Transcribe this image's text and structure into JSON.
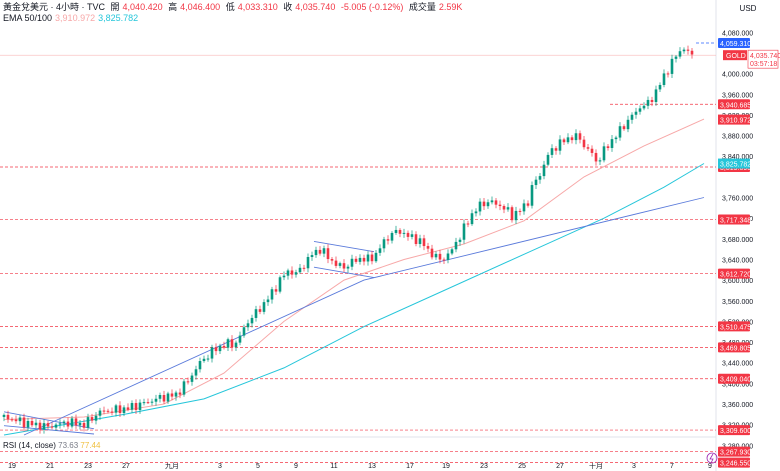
{
  "header": {
    "title": "黃金兌美元 · 4小時 · TVC",
    "open_label": "開",
    "open": "4,040.420",
    "high_label": "高",
    "high": "4,046.400",
    "low_label": "低",
    "low": "4,033.310",
    "close_label": "收",
    "close": "4,035.740",
    "change": "-5.005 (-0.12%)",
    "volume_label": "成交量",
    "volume": "2.59K",
    "ema_label": "EMA 50/100",
    "ema50": "3,910.972",
    "ema100": "3,825.782"
  },
  "rsi": {
    "label": "RSI (14, close)",
    "v1": "73.63",
    "v2": "77.44"
  },
  "currency": "USD",
  "colors": {
    "up": "#089981",
    "down": "#f23645",
    "ema50": "#f7a8a8",
    "ema100": "#26c6da",
    "trend": "#5b7bdb",
    "level": "#f23645"
  },
  "chart_data": {
    "type": "candlestick",
    "symbol": "GOLD",
    "ylim": [
      3240,
      4100
    ],
    "y_ticks": [
      4080,
      4000,
      3960,
      3920,
      3880,
      3840,
      3760,
      3720,
      3680,
      3640,
      3600,
      3560,
      3520,
      3480,
      3440,
      3400,
      3360,
      3320,
      3280
    ],
    "y_tick_labels": [
      "4,080.000",
      "4,000.000",
      "3,960.000",
      "3,920.000",
      "3,880.000",
      "3,840.000",
      "3,760.000",
      "3,720.000",
      "3,680.000",
      "3,640.000",
      "3,600.000",
      "3,560.000",
      "3,520.000",
      "3,480.000",
      "3,440.000",
      "3,400.000",
      "3,360.000",
      "3,320.000",
      "3,280.000"
    ],
    "x_labels": [
      "19",
      "21",
      "23",
      "27",
      "九月",
      "3",
      "5",
      "9",
      "11",
      "13",
      "17",
      "19",
      "23",
      "25",
      "27",
      "十月",
      "3",
      "7",
      "9"
    ],
    "levels": [
      4059.31,
      3940.685,
      3819.095,
      3717.348,
      3612.72,
      3510.475,
      3469.805,
      3409.04,
      3309.6,
      3267.93,
      3246.55
    ],
    "level_labels": [
      "4,059.310",
      "3,940.685",
      "3,819.095",
      "3,717.348",
      "3,612.720",
      "3,510.475",
      "3,469.805",
      "3,409.040",
      "3,309.600",
      "3,267.930",
      "3,246.550"
    ],
    "last_price": {
      "label": "GOLD",
      "value": "4,035.740",
      "countdown": "03:57:18"
    },
    "ema50_tag": "3,910.972",
    "ema100_tag": "3,825.782",
    "close_path": [
      [
        0,
        3335
      ],
      [
        12,
        3322
      ],
      [
        22,
        3316
      ],
      [
        32,
        3325
      ],
      [
        40,
        3320
      ],
      [
        48,
        3345
      ],
      [
        55,
        3348
      ],
      [
        62,
        3352
      ],
      [
        70,
        3362
      ],
      [
        78,
        3372
      ],
      [
        86,
        3378
      ],
      [
        92,
        3405
      ],
      [
        98,
        3440
      ],
      [
        104,
        3462
      ],
      [
        110,
        3475
      ],
      [
        116,
        3478
      ],
      [
        122,
        3520
      ],
      [
        128,
        3545
      ],
      [
        134,
        3575
      ],
      [
        138,
        3600
      ],
      [
        142,
        3618
      ],
      [
        146,
        3612
      ],
      [
        150,
        3630
      ],
      [
        154,
        3650
      ],
      [
        158,
        3660
      ],
      [
        162,
        3645
      ],
      [
        166,
        3630
      ],
      [
        170,
        3625
      ],
      [
        174,
        3635
      ],
      [
        178,
        3642
      ],
      [
        182,
        3640
      ],
      [
        186,
        3650
      ],
      [
        190,
        3675
      ],
      [
        194,
        3690
      ],
      [
        198,
        3695
      ],
      [
        202,
        3685
      ],
      [
        206,
        3680
      ],
      [
        210,
        3668
      ],
      [
        214,
        3650
      ],
      [
        218,
        3640
      ],
      [
        222,
        3648
      ],
      [
        226,
        3672
      ],
      [
        230,
        3700
      ],
      [
        234,
        3728
      ],
      [
        238,
        3745
      ],
      [
        242,
        3752
      ],
      [
        246,
        3748
      ],
      [
        250,
        3740
      ],
      [
        254,
        3725
      ],
      [
        258,
        3735
      ],
      [
        262,
        3752
      ],
      [
        264,
        3780
      ],
      [
        268,
        3805
      ],
      [
        272,
        3842
      ],
      [
        276,
        3860
      ],
      [
        280,
        3870
      ],
      [
        284,
        3878
      ],
      [
        288,
        3875
      ],
      [
        290,
        3860
      ],
      [
        294,
        3845
      ],
      [
        296,
        3830
      ],
      [
        298,
        3838
      ],
      [
        302,
        3862
      ],
      [
        306,
        3880
      ],
      [
        310,
        3900
      ],
      [
        314,
        3918
      ],
      [
        318,
        3935
      ],
      [
        322,
        3942
      ],
      [
        326,
        3965
      ],
      [
        330,
        3995
      ],
      [
        334,
        4022
      ],
      [
        338,
        4045
      ],
      [
        340,
        4048
      ],
      [
        344,
        4035
      ]
    ],
    "ema50": [
      [
        0,
        3330
      ],
      [
        40,
        3335
      ],
      [
        80,
        3360
      ],
      [
        110,
        3420
      ],
      [
        140,
        3520
      ],
      [
        170,
        3600
      ],
      [
        200,
        3640
      ],
      [
        230,
        3670
      ],
      [
        260,
        3715
      ],
      [
        290,
        3800
      ],
      [
        320,
        3860
      ],
      [
        350,
        3912
      ]
    ],
    "ema100": [
      [
        0,
        3300
      ],
      [
        60,
        3340
      ],
      [
        100,
        3370
      ],
      [
        140,
        3430
      ],
      [
        180,
        3510
      ],
      [
        220,
        3580
      ],
      [
        260,
        3650
      ],
      [
        300,
        3720
      ],
      [
        330,
        3780
      ],
      [
        350,
        3826
      ]
    ],
    "trendlines": [
      [
        [
          10,
          3300
        ],
        [
          180,
          3600
        ],
        [
          350,
          3760
        ]
      ],
      [
        [
          0,
          3345
        ],
        [
          45,
          3312
        ]
      ],
      [
        [
          0,
          3318
        ],
        [
          45,
          3302
        ]
      ],
      [
        [
          155,
          3675
        ],
        [
          185,
          3655
        ]
      ],
      [
        [
          155,
          3625
        ],
        [
          185,
          3605
        ]
      ]
    ]
  }
}
